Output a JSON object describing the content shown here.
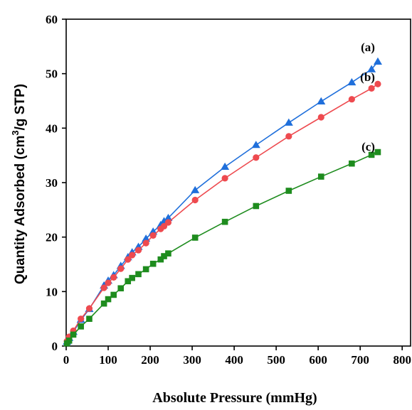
{
  "chart_data": {
    "type": "line",
    "xlabel": "Absolute Pressure (mmHg)",
    "ylabel": "Quantity Adsorbed (cm³/g STP)",
    "ylabel_parts": {
      "pre": "Quantity Adsorbed (cm",
      "sup": "3",
      "post": "/g STP)"
    },
    "xlim": [
      0,
      820
    ],
    "ylim": [
      0,
      60
    ],
    "xticks": [
      0,
      100,
      200,
      300,
      400,
      500,
      600,
      700,
      800
    ],
    "yticks": [
      0,
      10,
      20,
      30,
      40,
      50,
      60
    ],
    "grid": false,
    "series": [
      {
        "name": "(a)",
        "color": "#1f6fdb",
        "marker": "triangle",
        "x": [
          2,
          7,
          17,
          35,
          55,
          90,
          100,
          113,
          130,
          147,
          157,
          172,
          190,
          207,
          225,
          233,
          243,
          307,
          378,
          452,
          530,
          607,
          680,
          727,
          742
        ],
        "y": [
          0.8,
          1.5,
          2.6,
          4.8,
          6.8,
          11.1,
          12.0,
          13.0,
          14.7,
          16.3,
          17.2,
          18.2,
          19.7,
          21.0,
          22.2,
          22.9,
          23.5,
          28.6,
          32.9,
          36.9,
          41.0,
          44.9,
          48.4,
          50.8,
          52.2
        ]
      },
      {
        "name": "(b)",
        "color": "#ee4a4f",
        "marker": "circle",
        "x": [
          2,
          7,
          17,
          35,
          55,
          90,
          100,
          113,
          130,
          147,
          157,
          172,
          190,
          207,
          225,
          233,
          243,
          307,
          378,
          452,
          530,
          607,
          680,
          727,
          742
        ],
        "y": [
          0.9,
          1.7,
          2.8,
          5.0,
          6.9,
          10.7,
          11.6,
          12.6,
          14.2,
          15.9,
          16.7,
          17.6,
          18.9,
          20.3,
          21.5,
          22.0,
          22.7,
          26.8,
          30.8,
          34.6,
          38.5,
          42.0,
          45.3,
          47.3,
          48.1
        ]
      },
      {
        "name": "(c)",
        "color": "#1e8c1e",
        "marker": "square",
        "x": [
          2,
          7,
          17,
          35,
          55,
          90,
          100,
          113,
          130,
          147,
          157,
          172,
          190,
          207,
          225,
          233,
          243,
          307,
          378,
          452,
          530,
          607,
          680,
          727,
          742
        ],
        "y": [
          0.5,
          1.0,
          2.1,
          3.6,
          5.0,
          7.8,
          8.6,
          9.4,
          10.6,
          11.9,
          12.5,
          13.2,
          14.1,
          15.1,
          15.9,
          16.5,
          17.0,
          19.9,
          22.8,
          25.7,
          28.5,
          31.1,
          33.5,
          35.1,
          35.6
        ]
      }
    ]
  }
}
